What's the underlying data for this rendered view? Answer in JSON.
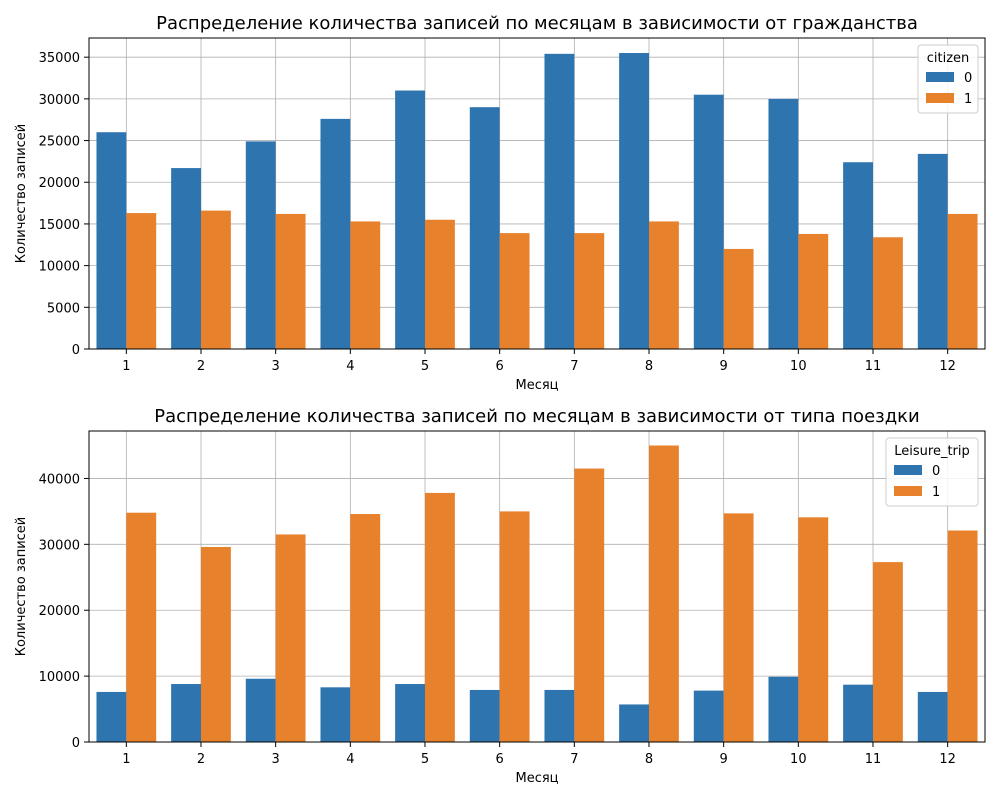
{
  "chart_data": [
    {
      "type": "bar",
      "title": "Распределение количества записей по месяцам в зависимости от гражданства",
      "xlabel": "Месяц",
      "ylabel": "Количество записей",
      "categories": [
        "1",
        "2",
        "3",
        "4",
        "5",
        "6",
        "7",
        "8",
        "9",
        "10",
        "11",
        "12"
      ],
      "series": [
        {
          "name": "0",
          "color": "#2e75b0",
          "values": [
            26000,
            21700,
            24900,
            27600,
            31000,
            29000,
            35400,
            35500,
            30500,
            30000,
            22400,
            23400
          ]
        },
        {
          "name": "1",
          "color": "#e8812c",
          "values": [
            16300,
            16600,
            16200,
            15300,
            15500,
            13900,
            13900,
            15300,
            12000,
            13800,
            13400,
            16200
          ]
        }
      ],
      "ylim": [
        0,
        37300
      ],
      "yticks": [
        0,
        5000,
        10000,
        15000,
        20000,
        25000,
        30000,
        35000
      ],
      "ytick_labels": [
        "0",
        "5000",
        "10000",
        "15000",
        "20000",
        "25000",
        "30000",
        "35000"
      ],
      "grid": true,
      "legend": {
        "title": "citizen",
        "position": "top-right"
      }
    },
    {
      "type": "bar",
      "title": "Распределение количества записей по месяцам в зависимости от типа поездки",
      "xlabel": "Месяц",
      "ylabel": "Количество записей",
      "categories": [
        "1",
        "2",
        "3",
        "4",
        "5",
        "6",
        "7",
        "8",
        "9",
        "10",
        "11",
        "12"
      ],
      "series": [
        {
          "name": "0",
          "color": "#2e75b0",
          "values": [
            7600,
            8800,
            9600,
            8300,
            8800,
            7900,
            7900,
            5700,
            7800,
            9900,
            8700,
            7600
          ]
        },
        {
          "name": "1",
          "color": "#e8812c",
          "values": [
            34800,
            29600,
            31500,
            34600,
            37800,
            35000,
            41500,
            45000,
            34700,
            34100,
            27300,
            32100
          ]
        }
      ],
      "ylim": [
        0,
        47200
      ],
      "yticks": [
        0,
        10000,
        20000,
        30000,
        40000
      ],
      "ytick_labels": [
        "0",
        "10000",
        "20000",
        "30000",
        "40000"
      ],
      "grid": true,
      "legend": {
        "title": "Leisure_trip",
        "position": "top-right"
      }
    }
  ]
}
